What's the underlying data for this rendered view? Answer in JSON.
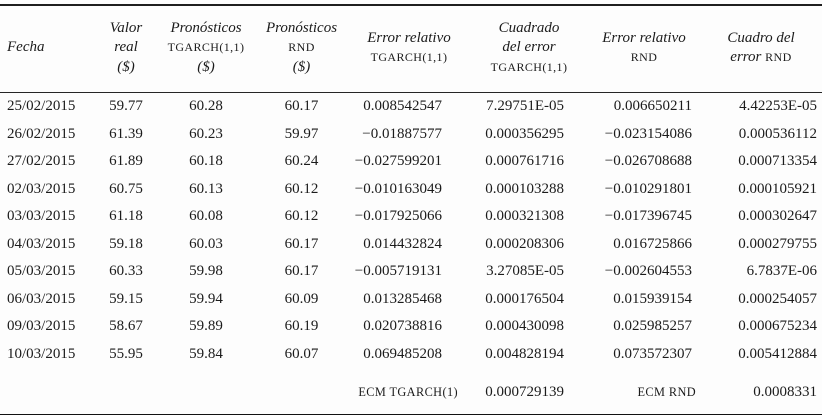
{
  "colors": {
    "background": "#fdfdfd",
    "text": "#1b1b1b",
    "rule": "#1f1f1f"
  },
  "table": {
    "columns": [
      {
        "id": "fecha",
        "lines": [
          [
            {
              "t": "Fecha"
            }
          ]
        ]
      },
      {
        "id": "valor-real",
        "lines": [
          [
            {
              "t": "Valor"
            }
          ],
          [
            {
              "t": "real"
            }
          ],
          [
            {
              "t": "($)"
            }
          ]
        ]
      },
      {
        "id": "pronosticos-tgarch",
        "lines": [
          [
            {
              "t": "Pronósticos"
            }
          ],
          [
            {
              "t": "TGARCH(1,1)",
              "sc": true
            }
          ],
          [
            {
              "t": "($)"
            }
          ]
        ]
      },
      {
        "id": "pronosticos-rnd",
        "lines": [
          [
            {
              "t": "Pronósticos"
            }
          ],
          [
            {
              "t": "RND",
              "sc": true
            }
          ],
          [
            {
              "t": "($)"
            }
          ]
        ]
      },
      {
        "id": "error-relativo-tgarch",
        "lines": [
          [
            {
              "t": "Error relativo"
            }
          ],
          [
            {
              "t": "TGARCH(1,1)",
              "sc": true
            }
          ]
        ]
      },
      {
        "id": "cuadrado-del-error-tgarch",
        "lines": [
          [
            {
              "t": "Cuadrado"
            }
          ],
          [
            {
              "t": "del error"
            }
          ],
          [
            {
              "t": "TGARCH(1,1)",
              "sc": true
            }
          ]
        ]
      },
      {
        "id": "error-relativo-rnd",
        "lines": [
          [
            {
              "t": "Error relativo"
            }
          ],
          [
            {
              "t": "RND",
              "sc": true
            }
          ]
        ]
      },
      {
        "id": "cuadro-del-error-rnd",
        "lines": [
          [
            {
              "t": "Cuadro del"
            }
          ],
          [
            {
              "t": "error "
            },
            {
              "t": "RND",
              "sc": true
            }
          ]
        ]
      }
    ],
    "rows": [
      [
        "25/02/2015",
        "59.77",
        "60.28",
        "60.17",
        "0.008542547",
        "7.29751E-05",
        "0.006650211",
        "4.42253E-05"
      ],
      [
        "26/02/2015",
        "61.39",
        "60.23",
        "59.97",
        "−0.01887577",
        "0.000356295",
        "−0.023154086",
        "0.000536112"
      ],
      [
        "27/02/2015",
        "61.89",
        "60.18",
        "60.24",
        "−0.027599201",
        "0.000761716",
        "−0.026708688",
        "0.000713354"
      ],
      [
        "02/03/2015",
        "60.75",
        "60.13",
        "60.12",
        "−0.010163049",
        "0.000103288",
        "−0.010291801",
        "0.000105921"
      ],
      [
        "03/03/2015",
        "61.18",
        "60.08",
        "60.12",
        "−0.017925066",
        "0.000321308",
        "−0.017396745",
        "0.000302647"
      ],
      [
        "04/03/2015",
        "59.18",
        "60.03",
        "60.17",
        "0.014432824",
        "0.000208306",
        "0.016725866",
        "0.000279755"
      ],
      [
        "05/03/2015",
        "60.33",
        "59.98",
        "60.17",
        "−0.005719131",
        "3.27085E-05",
        "−0.002604553",
        "6.7837E-06"
      ],
      [
        "06/03/2015",
        "59.15",
        "59.94",
        "60.09",
        "0.013285468",
        "0.000176504",
        "0.015939154",
        "0.000254057"
      ],
      [
        "09/03/2015",
        "58.67",
        "59.89",
        "60.19",
        "0.020738816",
        "0.000430098",
        "0.025985257",
        "0.000675234"
      ],
      [
        "10/03/2015",
        "55.95",
        "59.84",
        "60.07",
        "0.069485208",
        "0.004828194",
        "0.073572307",
        "0.005412884"
      ]
    ],
    "footer": {
      "ecm_tgarch_label": "ECM TGARCH(1)",
      "ecm_tgarch_value": "0.000729139",
      "ecm_rnd_label": "ECM RND",
      "ecm_rnd_value": "0.0008331"
    }
  }
}
